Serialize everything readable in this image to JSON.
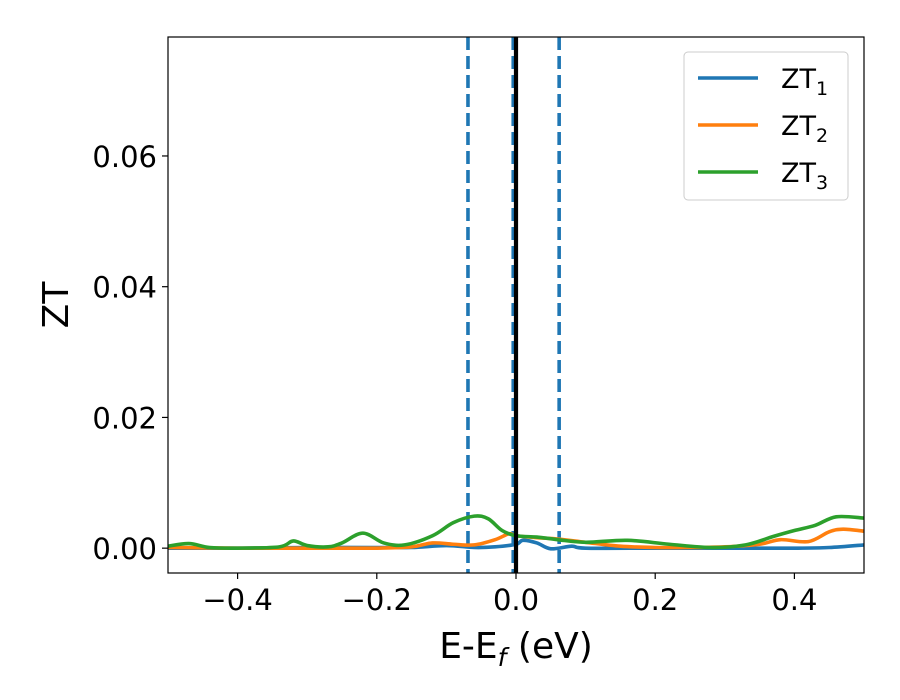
{
  "chart_data": {
    "type": "line",
    "xlabel": "E-E",
    "xlabel_sub": "f",
    "xlabel_unit": " (eV)",
    "ylabel": "ZT",
    "xlim": [
      -0.5,
      0.5
    ],
    "ylim": [
      -0.0038,
      0.0782
    ],
    "grid": false,
    "legend": "top-right",
    "xticks": [
      -0.4,
      -0.2,
      0.0,
      0.2,
      0.4
    ],
    "xtick_labels": [
      "−0.4",
      "−0.2",
      "0.0",
      "0.2",
      "0.4"
    ],
    "yticks": [
      0.0,
      0.02,
      0.04,
      0.06
    ],
    "ytick_labels": [
      "0.00",
      "0.02",
      "0.04",
      "0.06"
    ],
    "vlines": [
      {
        "x": -0.069,
        "style": "dashed",
        "color": "#1f77b4"
      },
      {
        "x": -0.004,
        "style": "dashed",
        "color": "#1f77b4"
      },
      {
        "x": 0.062,
        "style": "dashed",
        "color": "#1f77b4"
      },
      {
        "x": 0.0,
        "style": "solid",
        "color": "#000000"
      }
    ],
    "series": [
      {
        "name": "ZT",
        "name_sub": "1",
        "color": "#1f77b4",
        "x": [
          -0.5,
          -0.4,
          -0.3,
          -0.2,
          -0.15,
          -0.1,
          -0.06,
          -0.03,
          0.0,
          0.01,
          0.03,
          0.05,
          0.08,
          0.1,
          0.2,
          0.3,
          0.4,
          0.45,
          0.5
        ],
        "y": [
          0.0,
          0.0,
          0.0001,
          0.0001,
          0.0001,
          0.0004,
          0.0001,
          0.0002,
          0.0006,
          0.0012,
          0.0008,
          -0.0001,
          0.0003,
          0.0,
          0.0,
          0.0,
          0.0,
          0.0001,
          0.0005
        ]
      },
      {
        "name": "ZT",
        "name_sub": "2",
        "color": "#ff7f0e",
        "x": [
          -0.5,
          -0.4,
          -0.3,
          -0.2,
          -0.15,
          -0.12,
          -0.09,
          -0.06,
          -0.03,
          -0.01,
          0.0,
          0.03,
          0.06,
          0.1,
          0.15,
          0.2,
          0.25,
          0.3,
          0.35,
          0.38,
          0.42,
          0.45,
          0.47,
          0.5
        ],
        "y": [
          0.0001,
          0.0,
          0.0,
          0.0,
          0.0002,
          0.0008,
          0.0006,
          0.0005,
          0.0013,
          0.0022,
          0.0019,
          0.0016,
          0.0014,
          0.0009,
          0.0003,
          0.0001,
          0.0001,
          0.0002,
          0.0006,
          0.0013,
          0.001,
          0.0025,
          0.0029,
          0.0026
        ]
      },
      {
        "name": "ZT",
        "name_sub": "3",
        "color": "#2ca02c",
        "x": [
          -0.5,
          -0.47,
          -0.44,
          -0.4,
          -0.34,
          -0.32,
          -0.3,
          -0.27,
          -0.25,
          -0.22,
          -0.19,
          -0.16,
          -0.12,
          -0.09,
          -0.06,
          -0.04,
          -0.02,
          0.0,
          0.03,
          0.06,
          0.1,
          0.16,
          0.22,
          0.28,
          0.33,
          0.37,
          0.4,
          0.43,
          0.46,
          0.5
        ],
        "y": [
          0.0003,
          0.0007,
          0.0001,
          0.0,
          0.0002,
          0.0011,
          0.0004,
          0.0002,
          0.0008,
          0.0023,
          0.0008,
          0.0005,
          0.0019,
          0.0039,
          0.0049,
          0.0045,
          0.0027,
          0.0019,
          0.0017,
          0.0013,
          0.0009,
          0.0012,
          0.0006,
          0.0001,
          0.0005,
          0.0018,
          0.0027,
          0.0035,
          0.0048,
          0.0046
        ]
      }
    ]
  }
}
